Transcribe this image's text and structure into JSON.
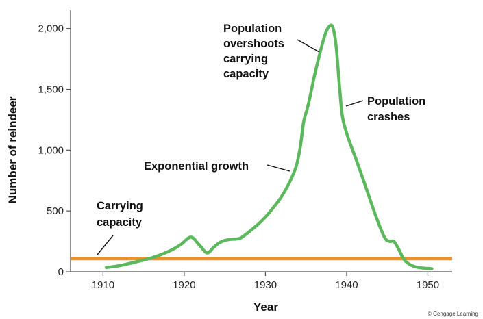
{
  "chart_data": {
    "type": "line",
    "xlabel": "Year",
    "ylabel": "Number of reindeer",
    "xlim": [
      1906,
      1953
    ],
    "ylim": [
      0,
      2150
    ],
    "x_ticks": [
      1910,
      1920,
      1930,
      1940,
      1950
    ],
    "x_tick_labels": [
      "1910",
      "1920",
      "1930",
      "1940",
      "1950"
    ],
    "y_ticks": [
      0,
      500,
      1000,
      1500,
      2000
    ],
    "y_tick_labels": [
      "0",
      "500",
      "1,000",
      "1,500",
      "2,000"
    ],
    "grid": false,
    "legend": "none",
    "series": [
      {
        "color": "#5cb85c",
        "x": [
          1910.4,
          1912,
          1914,
          1916,
          1918,
          1919.5,
          1920.8,
          1921.8,
          1922.8,
          1923.6,
          1924.5,
          1925.5,
          1926.5,
          1927,
          1928,
          1929,
          1930,
          1931,
          1932,
          1933,
          1933.8,
          1934.3,
          1934.7,
          1935.3,
          1936,
          1936.8,
          1937.4,
          1937.9,
          1938.3,
          1938.7,
          1939.1,
          1939.5,
          1940.2,
          1941.3,
          1942.5,
          1943.7,
          1944.7,
          1945.3,
          1945.8,
          1946.3,
          1947.2,
          1948.5,
          1950.5
        ],
        "y": [
          35,
          50,
          80,
          115,
          165,
          220,
          285,
          225,
          155,
          200,
          245,
          265,
          270,
          280,
          330,
          385,
          450,
          530,
          620,
          740,
          870,
          1030,
          1230,
          1380,
          1600,
          1820,
          1960,
          2020,
          2010,
          1860,
          1540,
          1270,
          1100,
          900,
          670,
          440,
          280,
          250,
          250,
          200,
          90,
          40,
          25
        ]
      },
      {
        "color": "#f0901e",
        "x": [
          1906,
          1953
        ],
        "y": [
          108,
          108
        ]
      }
    ],
    "annotations": [
      {
        "id": "overshoot",
        "lines": [
          "Population",
          "overshoots",
          "carrying",
          "capacity"
        ]
      },
      {
        "id": "crash",
        "lines": [
          "Population",
          "crashes"
        ]
      },
      {
        "id": "exponential",
        "lines": [
          "Exponential growth"
        ]
      },
      {
        "id": "capacity",
        "lines": [
          "Carrying",
          "capacity"
        ]
      }
    ]
  },
  "credit": "© Cengage Learning"
}
